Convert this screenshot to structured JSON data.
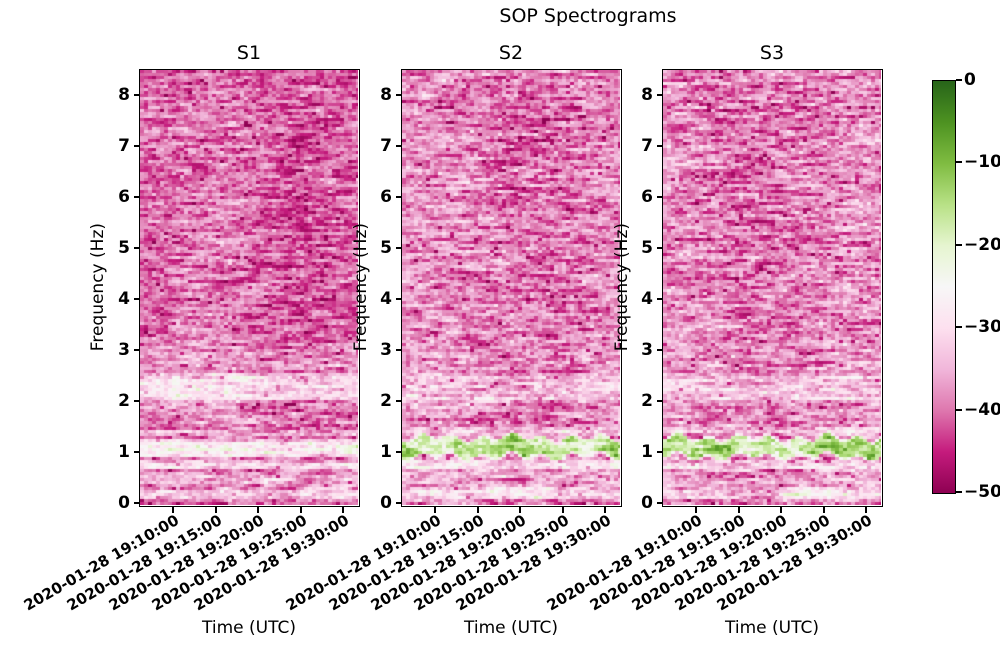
{
  "figure": {
    "title": "SOP Spectrograms"
  },
  "axes": {
    "ylabel": "Frequency (Hz)",
    "xlabel": "Time (UTC)",
    "yticks": [
      "0",
      "1",
      "2",
      "3",
      "4",
      "5",
      "6",
      "7",
      "8"
    ],
    "xticks": [
      "2020-01-28 19:10:00",
      "2020-01-28 19:15:00",
      "2020-01-28 19:20:00",
      "2020-01-28 19:25:00",
      "2020-01-28 19:30:00"
    ]
  },
  "colorbar": {
    "ticks": [
      "0",
      "−10",
      "−20",
      "−30",
      "−40",
      "−50"
    ],
    "range_db": [
      -50,
      0
    ],
    "colormap": "PiYG",
    "stops_top_to_bottom": [
      "#276419",
      "#4d9221",
      "#7fbc41",
      "#b8e186",
      "#e6f5d0",
      "#f7f7f7",
      "#fde0ef",
      "#f1b6da",
      "#de77ae",
      "#c51b7d",
      "#8e0152"
    ]
  },
  "chart_data": {
    "type": "heatmap",
    "title": "SOP Spectrograms",
    "ylim": [
      0,
      8.49
    ],
    "value_range_db": [
      -50,
      0
    ],
    "freq_ticks": [
      0,
      1,
      2,
      3,
      4,
      5,
      6,
      7,
      8
    ],
    "time_ticks": [
      "2020-01-28 19:10:00",
      "2020-01-28 19:15:00",
      "2020-01-28 19:20:00",
      "2020-01-28 19:25:00",
      "2020-01-28 19:30:00"
    ],
    "subplots": [
      {
        "title": "S1",
        "xlabel": "Time (UTC)",
        "ylabel": "Frequency (Hz)",
        "background_db": -40.5,
        "noise_db": 5.0,
        "bands": [
          {
            "f": [
              2.6,
              3.2
            ],
            "db": -37.5
          },
          {
            "f": [
              2.0,
              2.6
            ],
            "db": -30.5
          },
          {
            "f": [
              1.5,
              2.0
            ],
            "db": -38.5
          },
          {
            "f": [
              1.3,
              1.5
            ],
            "db": -35
          },
          {
            "f": [
              0.9,
              1.3
            ],
            "db": -26
          },
          {
            "f": [
              0.65,
              0.9
            ],
            "db": -31.5
          },
          {
            "f": [
              0.35,
              0.65
            ],
            "db": -36
          },
          {
            "f": [
              0.08,
              0.35
            ],
            "db": -33
          },
          {
            "f": [
              0.0,
              0.08
            ],
            "db": -44
          }
        ],
        "patches": [
          {
            "t": [
              0.7,
              0.97
            ],
            "f": [
              0.12,
              0.42
            ],
            "db": -28
          },
          {
            "t": [
              0.05,
              0.5
            ],
            "f": [
              2.0,
              2.55
            ],
            "db": -29
          }
        ]
      },
      {
        "title": "S2",
        "xlabel": "Time (UTC)",
        "ylabel": "Frequency (Hz)",
        "background_db": -38.7,
        "noise_db": 5.5,
        "bands": [
          {
            "f": [
              2.6,
              3.2
            ],
            "db": -37
          },
          {
            "f": [
              2.0,
              2.6
            ],
            "db": -33.5
          },
          {
            "f": [
              1.55,
              2.0
            ],
            "db": -37.5
          },
          {
            "f": [
              1.35,
              1.55
            ],
            "db": -33
          },
          {
            "f": [
              0.9,
              1.35
            ],
            "db": -16,
            "green": true
          },
          {
            "f": [
              0.65,
              0.9
            ],
            "db": -30.5
          },
          {
            "f": [
              0.35,
              0.65
            ],
            "db": -35.5
          },
          {
            "f": [
              0.08,
              0.35
            ],
            "db": -32
          },
          {
            "f": [
              0.0,
              0.08
            ],
            "db": -43
          }
        ],
        "patches": [
          {
            "t": [
              0.36,
              0.72
            ],
            "f": [
              0.1,
              0.38
            ],
            "db": -25
          }
        ]
      },
      {
        "title": "S3",
        "xlabel": "Time (UTC)",
        "ylabel": "Frequency (Hz)",
        "background_db": -38.7,
        "noise_db": 5.5,
        "bands": [
          {
            "f": [
              2.6,
              3.2
            ],
            "db": -37
          },
          {
            "f": [
              2.0,
              2.6
            ],
            "db": -33.5
          },
          {
            "f": [
              1.55,
              2.0
            ],
            "db": -37.5
          },
          {
            "f": [
              1.35,
              1.55
            ],
            "db": -33
          },
          {
            "f": [
              0.9,
              1.35
            ],
            "db": -15.5,
            "green": true
          },
          {
            "f": [
              0.65,
              0.9
            ],
            "db": -30.5
          },
          {
            "f": [
              0.35,
              0.65
            ],
            "db": -35.5
          },
          {
            "f": [
              0.08,
              0.35
            ],
            "db": -32
          },
          {
            "f": [
              0.0,
              0.08
            ],
            "db": -43
          }
        ],
        "patches": [
          {
            "t": [
              0.5,
              0.86
            ],
            "f": [
              0.1,
              0.35
            ],
            "db": -24
          }
        ]
      }
    ],
    "colorbar": {
      "range_db": [
        -50,
        0
      ],
      "ticks_db": [
        0,
        -10,
        -20,
        -30,
        -40,
        -50
      ],
      "colormap": "PiYG"
    }
  }
}
